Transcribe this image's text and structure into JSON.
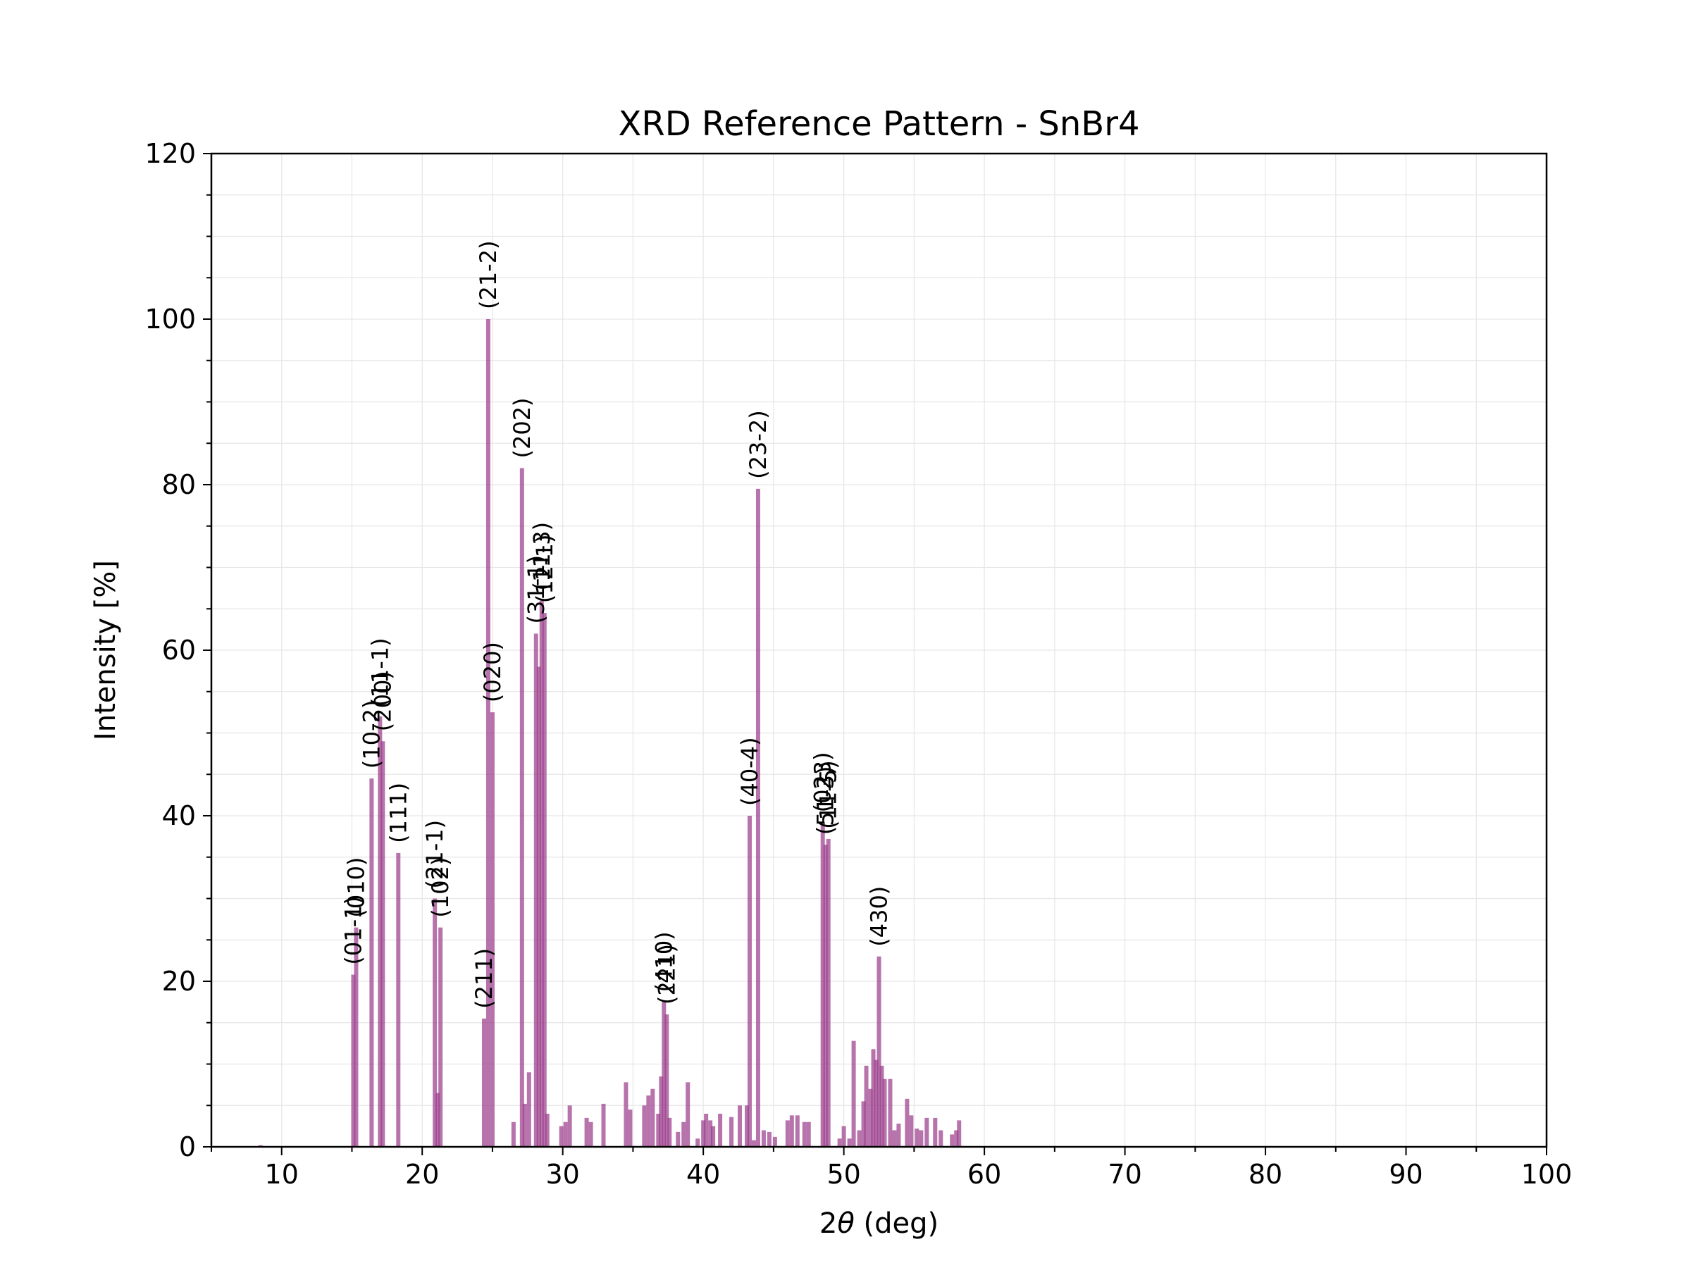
{
  "chart_data": {
    "type": "bar",
    "title": "XRD Reference Pattern - SnBr4",
    "xlabel_prefix": "2",
    "xlabel_symbol": "θ",
    "xlabel_suffix": " (deg)",
    "ylabel": "Intensity [%]",
    "xlim": [
      5,
      100
    ],
    "ylim": [
      0,
      120
    ],
    "xticks": [
      10,
      20,
      30,
      40,
      50,
      60,
      70,
      80,
      90,
      100
    ],
    "yticks": [
      0,
      20,
      40,
      60,
      80,
      100,
      120
    ],
    "grid": true,
    "bar_color": "#9b3d8a",
    "peaks": [
      {
        "x": 8.5,
        "y": 0.2
      },
      {
        "x": 15.1,
        "y": 20.8,
        "label": "(01-1)"
      },
      {
        "x": 15.3,
        "y": 26.5,
        "label": "(010)"
      },
      {
        "x": 16.4,
        "y": 44.5,
        "label": "(10-2)"
      },
      {
        "x": 17.0,
        "y": 52.0,
        "label": "(11-1)"
      },
      {
        "x": 17.2,
        "y": 49.0,
        "label": "(200)"
      },
      {
        "x": 18.3,
        "y": 35.5,
        "label": "(111)"
      },
      {
        "x": 20.9,
        "y": 30.0,
        "label": "(21-1)"
      },
      {
        "x": 21.1,
        "y": 6.5
      },
      {
        "x": 21.3,
        "y": 26.5,
        "label": "(102)"
      },
      {
        "x": 24.4,
        "y": 15.5,
        "label": "(211)"
      },
      {
        "x": 24.7,
        "y": 100.0,
        "label": "(21-2)"
      },
      {
        "x": 25.0,
        "y": 52.5,
        "label": "(020)"
      },
      {
        "x": 26.5,
        "y": 3.0
      },
      {
        "x": 27.1,
        "y": 82.0,
        "label": "(202)"
      },
      {
        "x": 27.3,
        "y": 5.2
      },
      {
        "x": 27.6,
        "y": 9.0
      },
      {
        "x": 28.1,
        "y": 62.0,
        "label": "(31-1)"
      },
      {
        "x": 28.3,
        "y": 58.0
      },
      {
        "x": 28.5,
        "y": 66.0,
        "label": "(11-3)"
      },
      {
        "x": 28.7,
        "y": 64.5,
        "label": "(12-1)"
      },
      {
        "x": 28.9,
        "y": 4.0
      },
      {
        "x": 29.9,
        "y": 2.5
      },
      {
        "x": 30.2,
        "y": 3.0
      },
      {
        "x": 30.5,
        "y": 5.0
      },
      {
        "x": 31.7,
        "y": 3.5
      },
      {
        "x": 32.0,
        "y": 3.0
      },
      {
        "x": 32.9,
        "y": 5.2
      },
      {
        "x": 34.5,
        "y": 7.8
      },
      {
        "x": 34.8,
        "y": 4.5
      },
      {
        "x": 35.8,
        "y": 5.0
      },
      {
        "x": 36.1,
        "y": 6.2
      },
      {
        "x": 36.4,
        "y": 7.0
      },
      {
        "x": 36.8,
        "y": 4.0
      },
      {
        "x": 37.0,
        "y": 8.5
      },
      {
        "x": 37.2,
        "y": 17.5,
        "label": "(410)"
      },
      {
        "x": 37.4,
        "y": 16.0,
        "label": "(221)"
      },
      {
        "x": 37.6,
        "y": 3.5
      },
      {
        "x": 38.2,
        "y": 1.8
      },
      {
        "x": 38.6,
        "y": 3.0
      },
      {
        "x": 38.9,
        "y": 7.8
      },
      {
        "x": 39.6,
        "y": 1.0
      },
      {
        "x": 40.0,
        "y": 3.2
      },
      {
        "x": 40.2,
        "y": 4.0
      },
      {
        "x": 40.5,
        "y": 3.2
      },
      {
        "x": 40.7,
        "y": 2.5
      },
      {
        "x": 41.2,
        "y": 4.0
      },
      {
        "x": 42.0,
        "y": 3.6
      },
      {
        "x": 42.6,
        "y": 5.0
      },
      {
        "x": 43.1,
        "y": 5.0
      },
      {
        "x": 43.3,
        "y": 40.0,
        "label": "(40-4)"
      },
      {
        "x": 43.6,
        "y": 0.8
      },
      {
        "x": 43.9,
        "y": 79.5,
        "label": "(23-2)"
      },
      {
        "x": 44.3,
        "y": 2.0
      },
      {
        "x": 44.7,
        "y": 1.8
      },
      {
        "x": 45.1,
        "y": 1.2
      },
      {
        "x": 46.0,
        "y": 3.2
      },
      {
        "x": 46.3,
        "y": 3.8
      },
      {
        "x": 46.7,
        "y": 3.8
      },
      {
        "x": 47.2,
        "y": 3.0
      },
      {
        "x": 47.5,
        "y": 3.0
      },
      {
        "x": 48.5,
        "y": 39.2,
        "label": "(023)"
      },
      {
        "x": 48.7,
        "y": 36.5,
        "label": "(51-3)"
      },
      {
        "x": 48.9,
        "y": 37.2,
        "label": "(11-5)"
      },
      {
        "x": 49.7,
        "y": 1.0
      },
      {
        "x": 50.0,
        "y": 2.5
      },
      {
        "x": 50.4,
        "y": 1.0
      },
      {
        "x": 50.7,
        "y": 12.8
      },
      {
        "x": 51.1,
        "y": 2.0
      },
      {
        "x": 51.4,
        "y": 5.5
      },
      {
        "x": 51.6,
        "y": 9.8
      },
      {
        "x": 51.9,
        "y": 7.0
      },
      {
        "x": 52.1,
        "y": 11.8
      },
      {
        "x": 52.3,
        "y": 10.5
      },
      {
        "x": 52.5,
        "y": 23.0,
        "label": "(430)"
      },
      {
        "x": 52.7,
        "y": 9.8
      },
      {
        "x": 52.9,
        "y": 8.2
      },
      {
        "x": 53.3,
        "y": 8.2
      },
      {
        "x": 53.6,
        "y": 2.0
      },
      {
        "x": 53.9,
        "y": 2.8
      },
      {
        "x": 54.5,
        "y": 5.8
      },
      {
        "x": 54.8,
        "y": 3.8
      },
      {
        "x": 55.2,
        "y": 2.2
      },
      {
        "x": 55.5,
        "y": 2.0
      },
      {
        "x": 55.9,
        "y": 3.5
      },
      {
        "x": 56.5,
        "y": 3.5
      },
      {
        "x": 56.9,
        "y": 2.0
      },
      {
        "x": 57.7,
        "y": 1.5
      },
      {
        "x": 58.0,
        "y": 2.0
      },
      {
        "x": 58.2,
        "y": 3.2
      }
    ]
  }
}
